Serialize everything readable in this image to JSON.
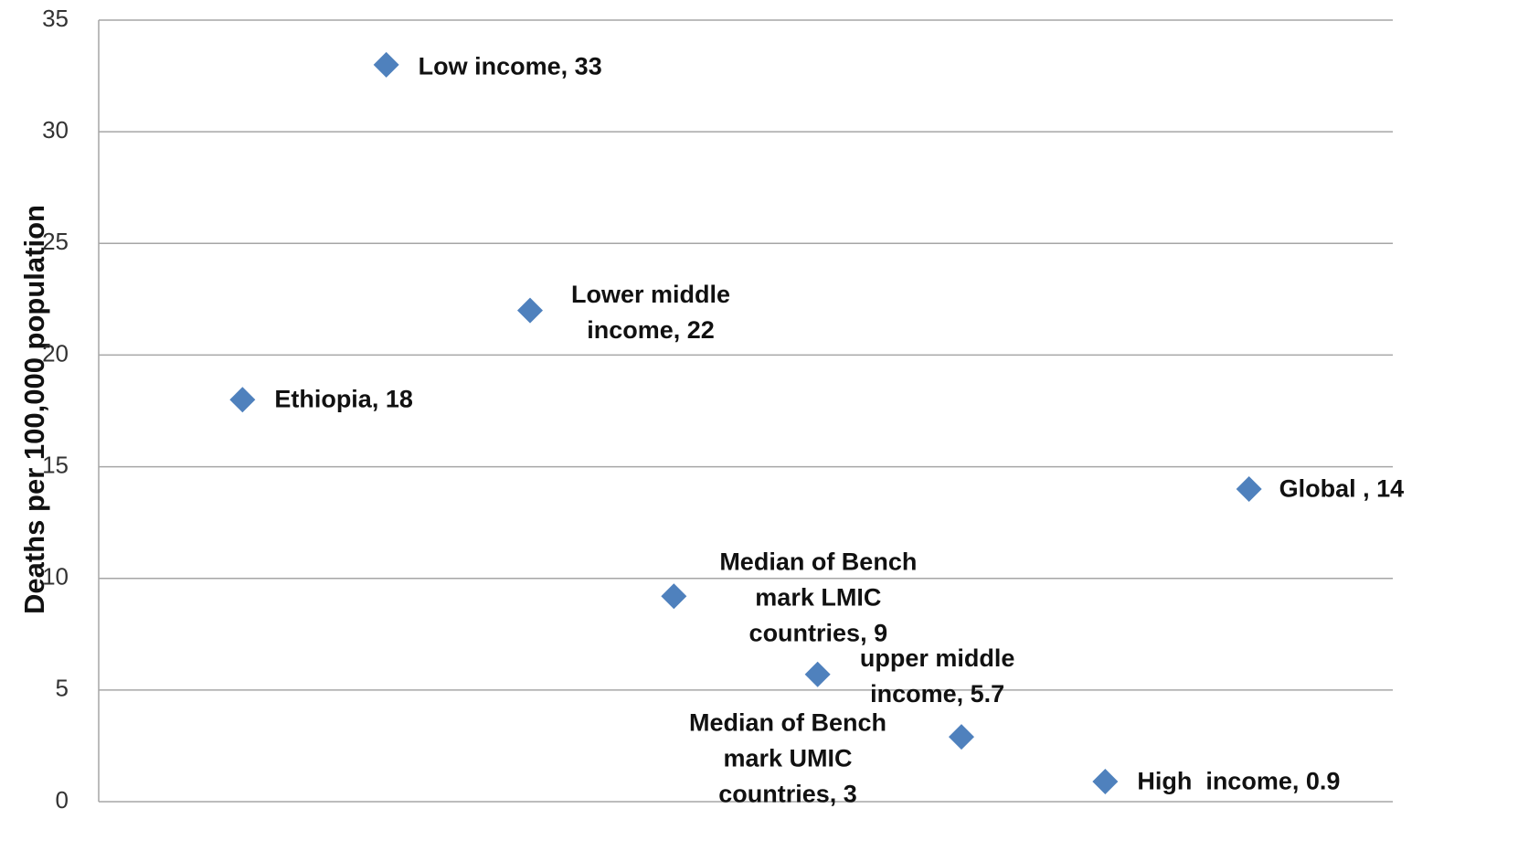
{
  "chart_data": {
    "type": "scatter",
    "y_label": "Deaths per 100,000 population",
    "x": [
      1,
      2,
      3,
      4,
      5,
      6,
      7,
      8
    ],
    "values": [
      18,
      33,
      22,
      9.2,
      5.7,
      2.9,
      0.9,
      14
    ],
    "value_labels": [
      "Ethiopia, 18",
      "Low income, 33",
      "Lower middle income, 22",
      "Median of Bench mark LMIC countries, 9",
      "upper middle income, 5.7",
      "Median of Bench mark UMIC countries, 3",
      "High  income, 0.9",
      "Global , 14"
    ],
    "color": "#4f81bd",
    "xlim": [
      0,
      9
    ],
    "ylim": [
      0,
      35
    ],
    "yticks": [
      0,
      5,
      10,
      15,
      20,
      25,
      30,
      35
    ],
    "grid": true
  }
}
